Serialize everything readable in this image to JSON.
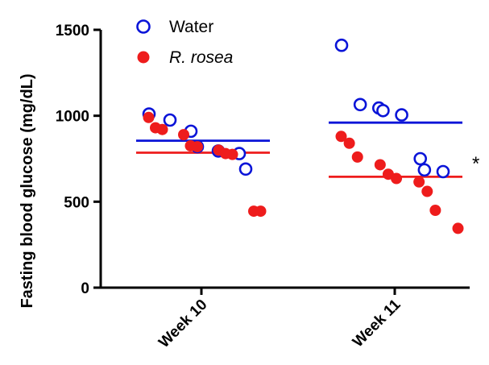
{
  "chart_data": {
    "type": "scatter",
    "ylabel": "Fasting blood glucose (mg/dL)",
    "xlabel": "",
    "categories": [
      "Week 10",
      "Week 11"
    ],
    "ylim": [
      0,
      1500
    ],
    "yticks": [
      0,
      500,
      1000,
      1500
    ],
    "significance": "*",
    "series": [
      {
        "name": "Water",
        "marker": "open-circle",
        "color": "#0a14d8",
        "points": [
          {
            "x": "Week 10",
            "y": 1010
          },
          {
            "x": "Week 10",
            "y": 975
          },
          {
            "x": "Week 10",
            "y": 910
          },
          {
            "x": "Week 10",
            "y": 820
          },
          {
            "x": "Week 10",
            "y": 795
          },
          {
            "x": "Week 10",
            "y": 780
          },
          {
            "x": "Week 10",
            "y": 690
          },
          {
            "x": "Week 11",
            "y": 1410
          },
          {
            "x": "Week 11",
            "y": 1065
          },
          {
            "x": "Week 11",
            "y": 1045
          },
          {
            "x": "Week 11",
            "y": 1030
          },
          {
            "x": "Week 11",
            "y": 1005
          },
          {
            "x": "Week 11",
            "y": 750
          },
          {
            "x": "Week 11",
            "y": 685
          },
          {
            "x": "Week 11",
            "y": 675
          }
        ],
        "means": [
          {
            "x": "Week 10",
            "y": 855
          },
          {
            "x": "Week 11",
            "y": 960
          }
        ]
      },
      {
        "name": "R. rosea",
        "marker": "filled-circle",
        "color": "#ee1c1c",
        "points": [
          {
            "x": "Week 10",
            "y": 990
          },
          {
            "x": "Week 10",
            "y": 930
          },
          {
            "x": "Week 10",
            "y": 920
          },
          {
            "x": "Week 10",
            "y": 890
          },
          {
            "x": "Week 10",
            "y": 825
          },
          {
            "x": "Week 10",
            "y": 820
          },
          {
            "x": "Week 10",
            "y": 800
          },
          {
            "x": "Week 10",
            "y": 780
          },
          {
            "x": "Week 10",
            "y": 775
          },
          {
            "x": "Week 10",
            "y": 445
          },
          {
            "x": "Week 10",
            "y": 445
          },
          {
            "x": "Week 11",
            "y": 880
          },
          {
            "x": "Week 11",
            "y": 840
          },
          {
            "x": "Week 11",
            "y": 760
          },
          {
            "x": "Week 11",
            "y": 715
          },
          {
            "x": "Week 11",
            "y": 660
          },
          {
            "x": "Week 11",
            "y": 635
          },
          {
            "x": "Week 11",
            "y": 615
          },
          {
            "x": "Week 11",
            "y": 560
          },
          {
            "x": "Week 11",
            "y": 450
          },
          {
            "x": "Week 11",
            "y": 345
          }
        ],
        "means": [
          {
            "x": "Week 10",
            "y": 785
          },
          {
            "x": "Week 11",
            "y": 645
          }
        ]
      }
    ],
    "legend": {
      "position": "top-left",
      "entries": [
        "Water",
        "R. rosea"
      ]
    }
  }
}
